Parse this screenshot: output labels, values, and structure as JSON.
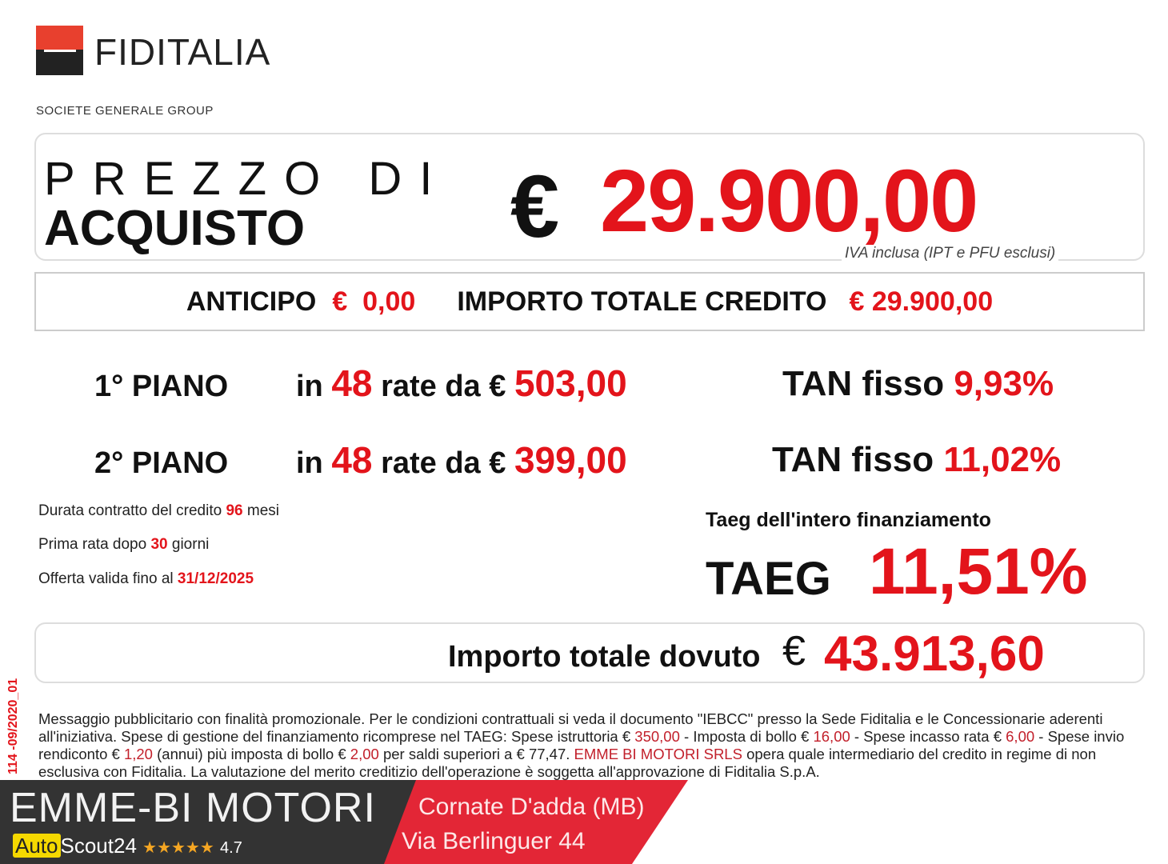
{
  "brand": {
    "name": "FIDITALIA",
    "group": "SOCIETE GENERALE GROUP"
  },
  "price": {
    "label_line1": "PREZZO DI",
    "label_line2": "ACQUISTO",
    "currency": "€",
    "value": "29.900,00",
    "note": "IVA inclusa (IPT e PFU esclusi)"
  },
  "credit": {
    "anticipo_label": "ANTICIPO",
    "anticipo_value": "€  0,00",
    "total_label": "IMPORTO TOTALE CREDITO",
    "total_value": "€ 29.900,00"
  },
  "plans": [
    {
      "label": "1° PIANO",
      "in": "in",
      "n": "48",
      "rate_text": "rate da €",
      "amount": "503,00",
      "tan_label": "TAN fisso",
      "tan": "9,93%"
    },
    {
      "label": "2° PIANO",
      "in": "in",
      "n": "48",
      "rate_text": "rate da €",
      "amount": "399,00",
      "tan_label": "TAN fisso",
      "tan": "11,02%"
    }
  ],
  "details": [
    {
      "pre": "Durata contratto del credito",
      "val": "96",
      "post": "mesi"
    },
    {
      "pre": "Prima rata dopo",
      "val": "30",
      "post": "giorni"
    },
    {
      "pre": "Offerta valida fino al",
      "val": "31/12/2025",
      "post": ""
    }
  ],
  "taeg": {
    "caption": "Taeg dell'intero finanziamento",
    "label": "TAEG",
    "value": "11,51%"
  },
  "dovuto": {
    "label": "Importo totale dovuto",
    "currency": "€",
    "value": "43.913,60"
  },
  "code": "114 -09/2020_01",
  "disclaimer": {
    "p1": "Messaggio pubblicitario con finalità promozionale. Per le condizioni contrattuali si veda il documento \"IEBCC\" presso la Sede Fiditalia e le Concessionarie aderenti all'iniziativa. Spese di gestione del finanziamento ricomprese nel TAEG: Spese istruttoria € ",
    "v1": "350,00",
    "p2": " - Imposta di bollo € ",
    "v2": "16,00",
    "p3": " -  Spese incasso rata € ",
    "v3": "6,00",
    "p4": " - Spese invio rendiconto € ",
    "v4": "1,20",
    "p5": " (annui) più imposta di bollo € ",
    "v5": "2,00",
    "p6": " per saldi superiori a € 77,47.  ",
    "v6": "EMME BI MOTORI SRLS",
    "p7": " opera quale intermediario del credito in regime di non esclusiva con Fiditalia. La valutazione del merito creditizio dell'operazione è soggetta all'approvazione di Fiditalia S.p.A."
  },
  "dealer": {
    "name": "EMME-BI MOTORI",
    "city": "Cornate D'adda (MB)",
    "address": "Via Berlinguer 44",
    "as_auto": "Auto",
    "as_scout": "Scout24",
    "stars": "★★★★★",
    "rating": "4.7"
  },
  "colors": {
    "accent": "#e3141b",
    "logo_red": "#e8402e",
    "dark": "#333333",
    "footer_red": "#e32636"
  }
}
